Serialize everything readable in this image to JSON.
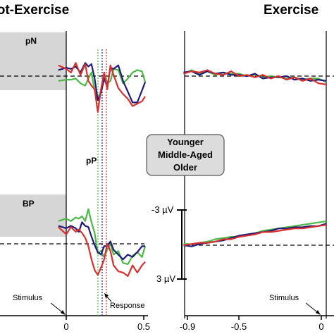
{
  "panels": {
    "left": {
      "title": "Not-Exercise"
    },
    "right": {
      "title": "Exercise"
    }
  },
  "labels": {
    "pN": "pN",
    "pP": "pP",
    "BP": "BP",
    "stimulus": "Stimulus",
    "response": "Response"
  },
  "scale_bar": {
    "top": "-3 µV",
    "bottom": "3 µV"
  },
  "legend": [
    "Younger",
    "Middle-Aged",
    "Older"
  ],
  "colors": {
    "Younger": "#4cb848",
    "Middle-Aged": "#1f1a78",
    "Older": "#d8302e",
    "shade": "#d6d6d6",
    "legend_box": "#dcdcdc"
  },
  "chart_data": [
    {
      "type": "line",
      "panel": "left-top",
      "label": "pN",
      "x_unit": "s",
      "y_unit": "µV",
      "xlim": [
        -0.9,
        0.5
      ],
      "ylim": [
        -3,
        3
      ],
      "series": [
        {
          "name": "Younger",
          "x": [
            -0.05,
            0,
            0.03,
            0.06,
            0.09,
            0.12,
            0.14,
            0.16,
            0.18,
            0.2,
            0.22,
            0.24,
            0.26,
            0.28,
            0.3,
            0.33,
            0.36,
            0.39,
            0.42,
            0.45,
            0.48,
            0.5
          ],
          "y": [
            0.4,
            0.3,
            0.3,
            0.2,
            0.6,
            0.8,
            0.2,
            -0.3,
            1.2,
            2.0,
            1.2,
            -0.2,
            0.6,
            0.4,
            -0.6,
            -0.5,
            0.6,
            0.2,
            -0.3,
            -0.5,
            -0.4,
            0.5
          ]
        },
        {
          "name": "Middle-Aged",
          "x": [
            -0.05,
            0,
            0.03,
            0.06,
            0.09,
            0.12,
            0.14,
            0.16,
            0.18,
            0.2,
            0.22,
            0.24,
            0.26,
            0.28,
            0.3,
            0.33,
            0.36,
            0.39,
            0.42,
            0.45,
            0.48,
            0.5
          ],
          "y": [
            -0.5,
            -0.7,
            -0.6,
            -0.8,
            -0.3,
            -1.1,
            -0.8,
            -1.0,
            0.2,
            2.0,
            1.4,
            0.2,
            0.9,
            -0.7,
            -0.6,
            -0.9,
            0.4,
            1.3,
            2.2,
            2.2,
            1.2,
            0.5
          ]
        },
        {
          "name": "Older",
          "x": [
            -0.05,
            0,
            0.03,
            0.06,
            0.09,
            0.12,
            0.14,
            0.16,
            0.18,
            0.2,
            0.22,
            0.24,
            0.26,
            0.28,
            0.3,
            0.33,
            0.36,
            0.39,
            0.42,
            0.45,
            0.48,
            0.5
          ],
          "y": [
            -0.9,
            -0.6,
            -0.3,
            -1.1,
            -0.1,
            -1.0,
            0.4,
            0.8,
            1.1,
            3.0,
            1.1,
            -0.3,
            1.1,
            -0.9,
            -0.1,
            1.0,
            1.5,
            1.9,
            2.5,
            2.3,
            2.1,
            1.7
          ]
        }
      ]
    },
    {
      "type": "line",
      "panel": "left-bottom",
      "label": "BP",
      "x_unit": "s",
      "y_unit": "µV",
      "xlim": [
        -0.9,
        0.5
      ],
      "ylim": [
        -3,
        3
      ],
      "series": [
        {
          "name": "Younger",
          "x": [
            -0.05,
            0,
            0.03,
            0.06,
            0.08,
            0.1,
            0.12,
            0.14,
            0.16,
            0.18,
            0.2,
            0.22,
            0.24,
            0.26,
            0.28,
            0.3,
            0.33,
            0.36,
            0.39,
            0.42,
            0.45,
            0.48,
            0.5
          ],
          "y": [
            -1.9,
            -2.1,
            -1.9,
            -2.2,
            -2.1,
            -2.3,
            -1.9,
            -2.9,
            -1.8,
            -0.9,
            0.8,
            0.6,
            1.1,
            0.5,
            0.0,
            0.9,
            0.6,
            1.6,
            1.7,
            1.0,
            0.7,
            1.1,
            0.2
          ]
        },
        {
          "name": "Middle-Aged",
          "x": [
            -0.05,
            0,
            0.03,
            0.06,
            0.08,
            0.1,
            0.12,
            0.14,
            0.16,
            0.18,
            0.2,
            0.22,
            0.24,
            0.26,
            0.28,
            0.3,
            0.33,
            0.36,
            0.39,
            0.42,
            0.45,
            0.48,
            0.5
          ],
          "y": [
            -1.5,
            -1.3,
            -1.5,
            -1.3,
            -1.0,
            -1.8,
            -1.5,
            -1.4,
            -0.6,
            0.1,
            0.7,
            0.9,
            0.2,
            0.2,
            -0.2,
            0.5,
            0.9,
            1.3,
            0.9,
            1.1,
            0.7,
            0.2,
            0.2
          ]
        },
        {
          "name": "Older",
          "x": [
            -0.05,
            0,
            0.03,
            0.06,
            0.08,
            0.1,
            0.12,
            0.14,
            0.16,
            0.18,
            0.2,
            0.22,
            0.24,
            0.26,
            0.28,
            0.3,
            0.33,
            0.36,
            0.39,
            0.42,
            0.45,
            0.48,
            0.5
          ],
          "y": [
            -1.4,
            -0.8,
            -1.4,
            -1.0,
            -1.2,
            -0.9,
            -0.5,
            0.2,
            1.3,
            2.2,
            2.6,
            2.0,
            1.3,
            0.0,
            0.6,
            1.8,
            2.3,
            2.4,
            2.7,
            1.8,
            2.4,
            1.8,
            1.5
          ]
        }
      ]
    },
    {
      "type": "line",
      "panel": "right-top",
      "x_unit": "s",
      "y_unit": "µV",
      "xlim": [
        -0.9,
        0.5
      ],
      "ylim": [
        -3,
        3
      ],
      "series": [
        {
          "name": "Younger",
          "x": [
            -0.9,
            -0.85,
            -0.8,
            -0.75,
            -0.7,
            -0.65,
            -0.6,
            -0.55,
            -0.5,
            -0.45,
            -0.4,
            -0.35,
            -0.3,
            -0.25,
            -0.2,
            -0.15,
            -0.1,
            -0.05,
            0
          ],
          "y": [
            -0.2,
            -0.5,
            -0.2,
            -0.4,
            -0.1,
            -0.3,
            -0.2,
            -0.2,
            0.0,
            -0.1,
            0.1,
            0.0,
            0.1,
            0.2,
            0.1,
            0.3,
            0.2,
            0.2,
            0.5
          ]
        },
        {
          "name": "Middle-Aged",
          "x": [
            -0.9,
            -0.85,
            -0.8,
            -0.75,
            -0.7,
            -0.65,
            -0.6,
            -0.55,
            -0.5,
            -0.45,
            -0.4,
            -0.35,
            -0.3,
            -0.25,
            -0.2,
            -0.15,
            -0.1,
            -0.05,
            0
          ],
          "y": [
            -0.3,
            -0.4,
            -0.1,
            -0.4,
            -0.2,
            -0.3,
            -0.1,
            -0.1,
            0.0,
            -0.2,
            0.2,
            0.1,
            0.1,
            0.0,
            0.3,
            0.2,
            0.4,
            0.3,
            0.4
          ]
        },
        {
          "name": "Older",
          "x": [
            -0.9,
            -0.85,
            -0.8,
            -0.75,
            -0.7,
            -0.65,
            -0.6,
            -0.55,
            -0.5,
            -0.45,
            -0.4,
            -0.35,
            -0.3,
            -0.25,
            -0.2,
            -0.15,
            -0.1,
            -0.05,
            0
          ],
          "y": [
            -0.2,
            -0.4,
            -0.3,
            -0.5,
            -0.2,
            -0.1,
            -0.4,
            0.0,
            -0.1,
            0.1,
            -0.1,
            0.2,
            0.0,
            0.3,
            0.1,
            0.4,
            0.2,
            0.6,
            0.7
          ]
        }
      ]
    },
    {
      "type": "line",
      "panel": "right-bottom",
      "x_unit": "s",
      "y_unit": "µV",
      "xlim": [
        -0.9,
        0.5
      ],
      "ylim": [
        -3,
        3
      ],
      "series": [
        {
          "name": "Younger",
          "x": [
            -0.9,
            -0.85,
            -0.8,
            -0.75,
            -0.7,
            -0.65,
            -0.6,
            -0.55,
            -0.5,
            -0.45,
            -0.4,
            -0.35,
            -0.3,
            -0.25,
            -0.2,
            -0.15,
            -0.1,
            -0.05,
            0
          ],
          "y": [
            -0.1,
            -0.1,
            -0.2,
            -0.3,
            -0.5,
            -0.6,
            -0.7,
            -0.7,
            -0.9,
            -1.0,
            -1.2,
            -1.3,
            -1.4,
            -1.5,
            -1.6,
            -1.7,
            -1.8,
            -1.9,
            -2.0
          ]
        },
        {
          "name": "Middle-Aged",
          "x": [
            -0.9,
            -0.85,
            -0.8,
            -0.75,
            -0.7,
            -0.65,
            -0.6,
            -0.55,
            -0.5,
            -0.45,
            -0.4,
            -0.35,
            -0.3,
            -0.25,
            -0.2,
            -0.15,
            -0.1,
            -0.05,
            0
          ],
          "y": [
            0.0,
            0.1,
            -0.1,
            -0.2,
            -0.3,
            -0.4,
            -0.6,
            -0.8,
            -0.9,
            -1.0,
            -1.1,
            -1.2,
            -1.4,
            -1.4,
            -1.5,
            -1.5,
            -1.6,
            -1.6,
            -1.8
          ]
        },
        {
          "name": "Older",
          "x": [
            -0.9,
            -0.85,
            -0.8,
            -0.75,
            -0.7,
            -0.65,
            -0.6,
            -0.55,
            -0.5,
            -0.45,
            -0.4,
            -0.35,
            -0.3,
            -0.25,
            -0.2,
            -0.15,
            -0.1,
            -0.05,
            0
          ],
          "y": [
            0.0,
            -0.1,
            -0.2,
            -0.2,
            -0.3,
            -0.5,
            -0.5,
            -0.7,
            -0.8,
            -0.9,
            -1.1,
            -1.1,
            -1.2,
            -1.3,
            -1.4,
            -1.4,
            -1.5,
            -1.6,
            -1.7
          ]
        }
      ]
    }
  ],
  "x_ticks_left": [
    "0",
    "0.5"
  ],
  "x_ticks_right": [
    "-0.9",
    "-0.5",
    "0"
  ]
}
